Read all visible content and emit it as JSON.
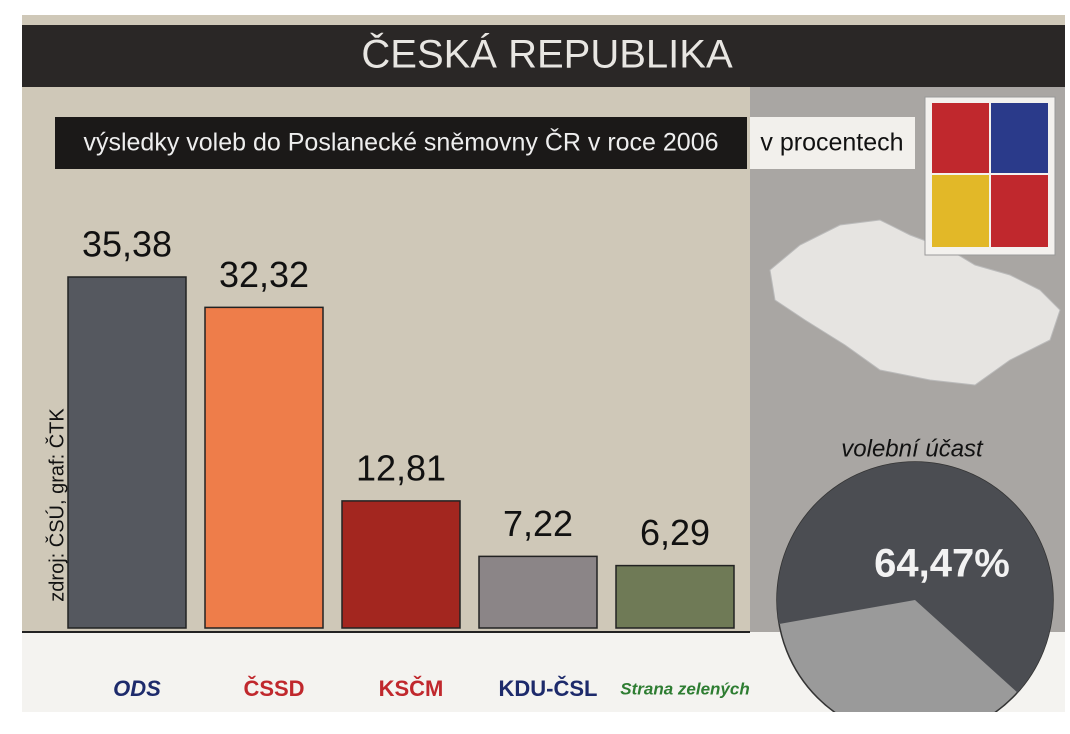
{
  "chart_data": [
    {
      "type": "bar",
      "title": "ČESKÁ REPUBLIKA",
      "subtitle": "výsledky voleb do Poslanecké sněmovny ČR v roce 2006",
      "unit": "v procentech",
      "source": "zdroj: ČSÚ, graf: ČTK",
      "categories": [
        "ODS",
        "ČSSD",
        "KSČM",
        "KDU-ČSL",
        "Strana zelených"
      ],
      "values": [
        35.38,
        32.32,
        12.81,
        7.22,
        6.29
      ],
      "value_labels": [
        "35,38",
        "32,32",
        "12,81",
        "7,22",
        "6,29"
      ],
      "colors": [
        "#55585f",
        "#ee7d4a",
        "#a3261f",
        "#8b8587",
        "#6f7a56"
      ],
      "category_colors": [
        "#1d2a6b",
        "#c0282d",
        "#c0282d",
        "#1d2a6b",
        "#2e7d32"
      ]
    },
    {
      "type": "pie",
      "title": "volební účast",
      "values": [
        64.47
      ],
      "value_labels": [
        "64,47%"
      ],
      "color": "#4b4d52",
      "rest_color": "#9a9a9a"
    }
  ]
}
